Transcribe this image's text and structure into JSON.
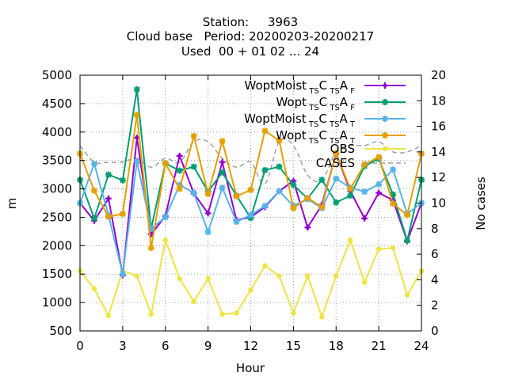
{
  "chart_data": {
    "type": "line",
    "title_lines": [
      "Station:     3963",
      "Cloud base   Period: 20200203-20200217",
      "Used  00 + 01 02 ... 24"
    ],
    "xlabel": "Hour",
    "ylabel": "m",
    "y2label": "No cases",
    "xlim": [
      0,
      24
    ],
    "ylim": [
      500,
      5000
    ],
    "y2lim": [
      0,
      20
    ],
    "x_ticks": [
      "0",
      "3",
      "6",
      "9",
      "12",
      "15",
      "18",
      "21",
      "24"
    ],
    "y_ticks": [
      "500",
      "1000",
      "1500",
      "2000",
      "2500",
      "3000",
      "3500",
      "4000",
      "4500",
      "5000"
    ],
    "y2_ticks": [
      "0",
      "2",
      "4",
      "6",
      "8",
      "10",
      "12",
      "14",
      "16",
      "18",
      "20"
    ],
    "grid": true,
    "legend_position": "top-right",
    "x": [
      0,
      1,
      2,
      3,
      4,
      5,
      6,
      7,
      8,
      9,
      10,
      11,
      12,
      13,
      14,
      15,
      16,
      17,
      18,
      19,
      20,
      21,
      22,
      23,
      24
    ],
    "series": [
      {
        "name": "WoptMoist TS C TS A F",
        "label_parts": [
          "WoptMoist",
          "TS",
          "C",
          "TS",
          "A",
          "F"
        ],
        "color": "#9400d3",
        "marker": "plus",
        "axis": "y1",
        "values": [
          2750,
          2440,
          2830,
          1480,
          3900,
          2200,
          2520,
          3580,
          2920,
          2570,
          3470,
          2450,
          2500,
          2680,
          2960,
          3140,
          2320,
          2720,
          3620,
          2960,
          2480,
          2930,
          2800,
          2080,
          2750
        ]
      },
      {
        "name": "Wopt TS C TS A F",
        "label_parts": [
          "Wopt",
          "TS",
          "C",
          "TS",
          "A",
          "F"
        ],
        "color": "#009e73",
        "marker": "star",
        "axis": "y1",
        "values": [
          3160,
          2480,
          3250,
          3150,
          4750,
          2300,
          3450,
          3320,
          3390,
          2950,
          3290,
          2880,
          2490,
          3330,
          3390,
          3070,
          2830,
          3160,
          2760,
          2880,
          3400,
          3530,
          2900,
          2090,
          3160
        ]
      },
      {
        "name": "WoptMoist TS C TS A T",
        "label_parts": [
          "WoptMoist",
          "TS",
          "C",
          "TS",
          "A",
          "T"
        ],
        "color": "#56b4e9",
        "marker": "star",
        "axis": "y1",
        "values": [
          2750,
          3440,
          2540,
          1500,
          3480,
          2300,
          2500,
          3070,
          2930,
          2240,
          3020,
          2420,
          2540,
          2700,
          2960,
          2700,
          2820,
          2660,
          3180,
          3020,
          2950,
          3080,
          3340,
          2560,
          2750
        ]
      },
      {
        "name": "Wopt TS C TS A T",
        "label_parts": [
          "Wopt",
          "TS",
          "C",
          "TS",
          "A",
          "T"
        ],
        "color": "#e69f00",
        "marker": "star",
        "axis": "y1",
        "values": [
          3620,
          2970,
          2510,
          2560,
          4300,
          1960,
          3450,
          3000,
          3930,
          2910,
          3840,
          2870,
          2980,
          4020,
          3850,
          2660,
          2840,
          2680,
          3630,
          3000,
          3430,
          3560,
          2740,
          2540,
          3620
        ]
      },
      {
        "name": "OBS",
        "label_parts": [
          "OBS"
        ],
        "color": "#f0e442",
        "marker": "circle",
        "axis": "y2",
        "values": [
          4.7,
          3.3,
          1.2,
          4.7,
          4.3,
          1.3,
          7.1,
          4.1,
          2.3,
          4.1,
          1.3,
          1.4,
          3.2,
          5.1,
          4.3,
          1.4,
          4.3,
          1.1,
          4.3,
          7.1,
          3.8,
          6.4,
          6.5,
          2.8,
          4.7
        ]
      },
      {
        "name": "CASES",
        "label_parts": [
          "CASES"
        ],
        "color": "#a0a0a0",
        "marker": "none",
        "dash": true,
        "axis": "y2",
        "values": [
          14.5,
          13.2,
          13.2,
          13.2,
          13.5,
          12.8,
          13.5,
          13.2,
          14.8,
          14.8,
          13.5,
          12.8,
          13.2,
          11.5,
          14.8,
          14.5,
          12.2,
          11.8,
          14.0,
          14.5,
          14.5,
          14.8,
          14.0,
          14.0,
          14.5
        ]
      }
    ]
  }
}
